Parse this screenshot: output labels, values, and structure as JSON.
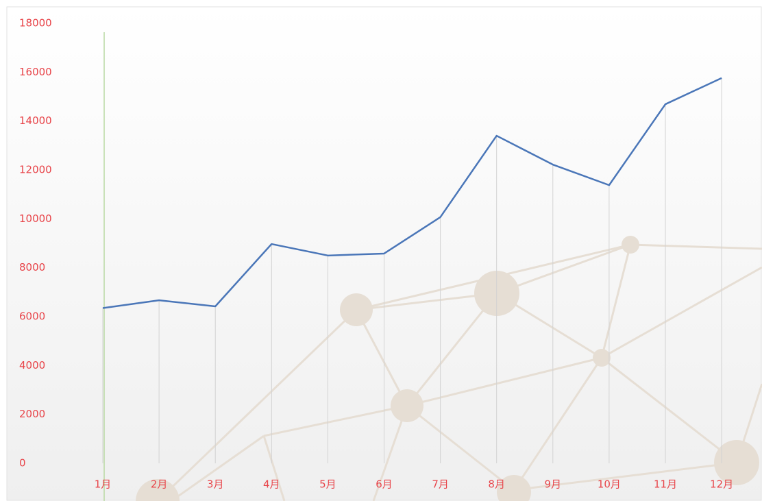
{
  "chart_data": {
    "type": "line",
    "categories": [
      "1月",
      "2月",
      "3月",
      "4月",
      "5月",
      "6月",
      "7月",
      "8月",
      "9月",
      "10月",
      "11月",
      "12月"
    ],
    "series": [
      {
        "color": "#4a76b8",
        "values": [
          6350,
          6670,
          6420,
          8970,
          8500,
          8580,
          10070,
          13400,
          12220,
          11380,
          14690,
          15760
        ]
      }
    ],
    "ylim": [
      0,
      18000
    ],
    "yticks": [
      0,
      2000,
      4000,
      6000,
      8000,
      10000,
      12000,
      14000,
      16000,
      18000
    ],
    "drop_lines": true,
    "label_color": "#e8454a"
  }
}
